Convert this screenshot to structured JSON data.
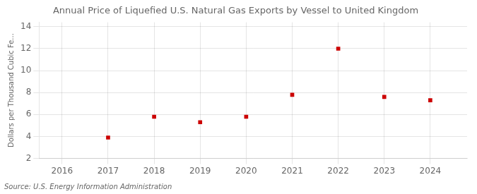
{
  "chart_data": {
    "type": "scatter",
    "title": "Annual Price of Liquefied U.S. Natural Gas Exports by Vessel to United Kingdom",
    "ylabel": "Dollars per Thousand Cubic Fe...",
    "source": "Source: U.S. Energy Information Administration",
    "x": [
      2017,
      2018,
      2019,
      2020,
      2021,
      2022,
      2023,
      2024
    ],
    "values": [
      3.9,
      5.8,
      5.3,
      5.8,
      7.8,
      12.0,
      7.6,
      7.3
    ],
    "color": "#cc0000",
    "marker": "square",
    "xlim": [
      2015.5,
      2024.8
    ],
    "xticks": [
      2016,
      2017,
      2018,
      2019,
      2020,
      2021,
      2022,
      2023,
      2024
    ],
    "ylim": [
      2,
      14.4
    ],
    "yticks": [
      2,
      4,
      6,
      8,
      10,
      12,
      14
    ],
    "grid": true
  }
}
